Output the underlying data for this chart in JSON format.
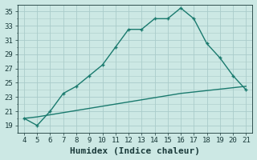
{
  "xlabel": "Humidex (Indice chaleur)",
  "ylabel": "",
  "x_main": [
    4,
    5,
    6,
    7,
    8,
    9,
    10,
    11,
    12,
    13,
    14,
    15,
    16,
    17,
    18,
    19,
    20,
    21
  ],
  "y_main": [
    20.0,
    19.0,
    21.0,
    23.5,
    24.5,
    26.0,
    27.5,
    30.0,
    32.5,
    32.5,
    34.0,
    34.0,
    35.5,
    34.0,
    30.5,
    28.5,
    26.0,
    24.0
  ],
  "x_line2": [
    4,
    5,
    6,
    7,
    8,
    9,
    10,
    11,
    12,
    13,
    14,
    15,
    16,
    17,
    18,
    19,
    20,
    21
  ],
  "y_line2": [
    20.0,
    20.2,
    20.5,
    20.8,
    21.1,
    21.4,
    21.7,
    22.0,
    22.3,
    22.6,
    22.9,
    23.2,
    23.5,
    23.7,
    23.9,
    24.1,
    24.3,
    24.5
  ],
  "line_color": "#1a7a6e",
  "bg_color": "#cce8e4",
  "grid_color": "#aaccca",
  "tick_color": "#1a3a3a",
  "xlim": [
    3.5,
    21.5
  ],
  "ylim": [
    18,
    36
  ],
  "yticks": [
    19,
    21,
    23,
    25,
    27,
    29,
    31,
    33,
    35
  ],
  "xticks": [
    4,
    5,
    6,
    7,
    8,
    9,
    10,
    11,
    12,
    13,
    14,
    15,
    16,
    17,
    18,
    19,
    20,
    21
  ],
  "marker_size": 3.5,
  "line_width": 1.0,
  "xlabel_fontsize": 8,
  "tick_fontsize": 6.5
}
